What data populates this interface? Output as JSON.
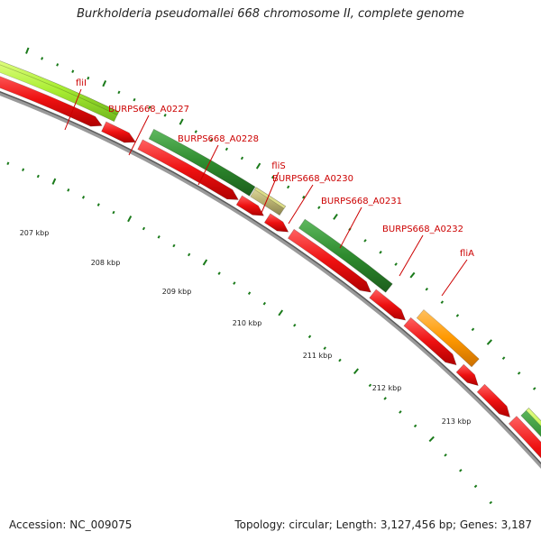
{
  "title": "Burkholderia pseudomallei 668 chromosome II, complete genome",
  "footer": {
    "accession": "Accession: NC_009075",
    "summary": "Topology: circular; Length: 3,127,456 bp; Genes: 3,187"
  },
  "colors": {
    "cds_red": "#ee1111",
    "gene_green": "#2e8b2e",
    "gene_lightgreen": "#aaee33",
    "gene_orange": "#ff9900",
    "gene_tan": "#b8b070",
    "backbone": "#888888",
    "tick": "#1a7a1a",
    "label": "#cc0000"
  },
  "gene_labels": [
    {
      "name": "fliI"
    },
    {
      "name": "BURPS668_A0227"
    },
    {
      "name": "BURPS668_A0228"
    },
    {
      "name": "fliS"
    },
    {
      "name": "BURPS668_A0230"
    },
    {
      "name": "BURPS668_A0231"
    },
    {
      "name": "BURPS668_A0232"
    },
    {
      "name": "fliA"
    }
  ],
  "kbp_labels": [
    {
      "text": "207 kbp"
    },
    {
      "text": "208 kbp"
    },
    {
      "text": "209 kbp"
    },
    {
      "text": "210 kbp"
    },
    {
      "text": "211 kbp"
    },
    {
      "text": "212 kbp"
    },
    {
      "text": "213 kbp"
    }
  ]
}
